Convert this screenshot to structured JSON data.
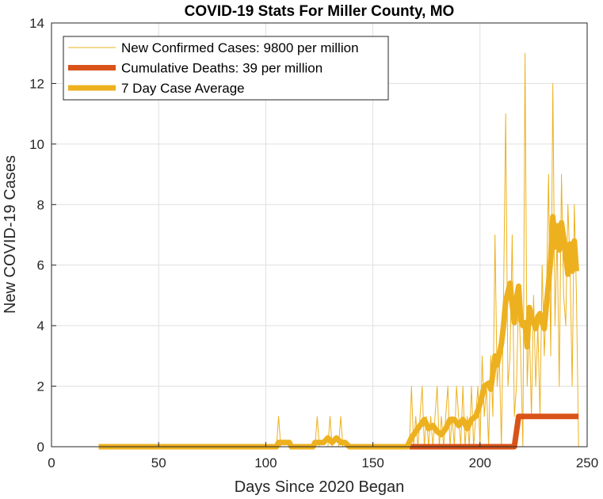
{
  "chart_data": {
    "type": "line",
    "title": "COVID-19 Stats For Miller County, MO",
    "xlabel": "Days Since 2020 Began",
    "ylabel": "New COVID-19 Cases",
    "xlim": [
      0,
      250
    ],
    "ylim": [
      0,
      14
    ],
    "xticks": [
      0,
      50,
      100,
      150,
      200,
      250
    ],
    "yticks": [
      0,
      2,
      4,
      6,
      8,
      10,
      12,
      14
    ],
    "grid": true,
    "legend_position": "top-left",
    "series": [
      {
        "name": "New Confirmed Cases: 9800 per million",
        "color": "#EDB120",
        "style": "thin",
        "points": [
          [
            22,
            0
          ],
          [
            105,
            0
          ],
          [
            106,
            1
          ],
          [
            107,
            0
          ],
          [
            123,
            0
          ],
          [
            124,
            1
          ],
          [
            125,
            0
          ],
          [
            129,
            0
          ],
          [
            130,
            1
          ],
          [
            131,
            0
          ],
          [
            134,
            0
          ],
          [
            135,
            1
          ],
          [
            136,
            0
          ],
          [
            166,
            0
          ],
          [
            167,
            0
          ],
          [
            168,
            2
          ],
          [
            169,
            0
          ],
          [
            170,
            1
          ],
          [
            171,
            0
          ],
          [
            172,
            1
          ],
          [
            173,
            2
          ],
          [
            174,
            0
          ],
          [
            175,
            1
          ],
          [
            176,
            0
          ],
          [
            177,
            1
          ],
          [
            178,
            0
          ],
          [
            179,
            1
          ],
          [
            180,
            2
          ],
          [
            181,
            0
          ],
          [
            182,
            1
          ],
          [
            183,
            0
          ],
          [
            184,
            1
          ],
          [
            185,
            2
          ],
          [
            186,
            0
          ],
          [
            187,
            1
          ],
          [
            188,
            0
          ],
          [
            189,
            2
          ],
          [
            190,
            1
          ],
          [
            191,
            0
          ],
          [
            192,
            2
          ],
          [
            193,
            0
          ],
          [
            194,
            1
          ],
          [
            195,
            0
          ],
          [
            196,
            2
          ],
          [
            197,
            0
          ],
          [
            198,
            1
          ],
          [
            199,
            2
          ],
          [
            200,
            0
          ],
          [
            201,
            3
          ],
          [
            202,
            1
          ],
          [
            203,
            2
          ],
          [
            204,
            0
          ],
          [
            205,
            3
          ],
          [
            206,
            1
          ],
          [
            207,
            7
          ],
          [
            208,
            2
          ],
          [
            209,
            3
          ],
          [
            210,
            0
          ],
          [
            211,
            5
          ],
          [
            212,
            11
          ],
          [
            213,
            2
          ],
          [
            214,
            3
          ],
          [
            215,
            7
          ],
          [
            216,
            1
          ],
          [
            217,
            2
          ],
          [
            218,
            5
          ],
          [
            219,
            3
          ],
          [
            220,
            0
          ],
          [
            221,
            13
          ],
          [
            222,
            2
          ],
          [
            223,
            4
          ],
          [
            224,
            1
          ],
          [
            225,
            5
          ],
          [
            226,
            2
          ],
          [
            227,
            4
          ],
          [
            228,
            1
          ],
          [
            229,
            6
          ],
          [
            230,
            3
          ],
          [
            231,
            5
          ],
          [
            232,
            9
          ],
          [
            233,
            3
          ],
          [
            234,
            12
          ],
          [
            235,
            4
          ],
          [
            236,
            7
          ],
          [
            237,
            2
          ],
          [
            238,
            9
          ],
          [
            239,
            5
          ],
          [
            240,
            4
          ],
          [
            241,
            8
          ],
          [
            242,
            6
          ],
          [
            243,
            2
          ],
          [
            244,
            8
          ],
          [
            245,
            5
          ],
          [
            246,
            0
          ]
        ]
      },
      {
        "name": "Cumulative Deaths: 39 per million",
        "color": "#D95319",
        "style": "thick",
        "points": [
          [
            167,
            0
          ],
          [
            216,
            0
          ],
          [
            218,
            1
          ],
          [
            246,
            1
          ]
        ]
      },
      {
        "name": "7 Day Case Average",
        "color": "#EDB120",
        "style": "thick",
        "points": [
          [
            22,
            0
          ],
          [
            105,
            0
          ],
          [
            106,
            0.14
          ],
          [
            111,
            0.14
          ],
          [
            112,
            0
          ],
          [
            122,
            0
          ],
          [
            123,
            0.14
          ],
          [
            127,
            0.14
          ],
          [
            129,
            0.29
          ],
          [
            131,
            0.14
          ],
          [
            133,
            0.29
          ],
          [
            135,
            0.14
          ],
          [
            137,
            0.14
          ],
          [
            139,
            0
          ],
          [
            166,
            0
          ],
          [
            168,
            0.3
          ],
          [
            170,
            0.5
          ],
          [
            172,
            0.7
          ],
          [
            174,
            0.9
          ],
          [
            176,
            0.6
          ],
          [
            178,
            0.7
          ],
          [
            180,
            0.5
          ],
          [
            182,
            0.4
          ],
          [
            184,
            0.6
          ],
          [
            186,
            0.9
          ],
          [
            188,
            0.9
          ],
          [
            190,
            0.7
          ],
          [
            192,
            0.9
          ],
          [
            194,
            0.6
          ],
          [
            196,
            0.9
          ],
          [
            198,
            1.0
          ],
          [
            200,
            1.4
          ],
          [
            202,
            2.0
          ],
          [
            204,
            2.1
          ],
          [
            205,
            1.9
          ],
          [
            206,
            2.4
          ],
          [
            207,
            3.0
          ],
          [
            208,
            2.7
          ],
          [
            210,
            3.4
          ],
          [
            211,
            4.0
          ],
          [
            212,
            4.8
          ],
          [
            214,
            5.4
          ],
          [
            215,
            4.7
          ],
          [
            216,
            4.1
          ],
          [
            217,
            4.9
          ],
          [
            218,
            5.3
          ],
          [
            219,
            4.2
          ],
          [
            220,
            4.0
          ],
          [
            221,
            4.1
          ],
          [
            222,
            3.3
          ],
          [
            223,
            4.6
          ],
          [
            224,
            4.3
          ],
          [
            226,
            3.9
          ],
          [
            227,
            4.3
          ],
          [
            228,
            4.4
          ],
          [
            229,
            4.1
          ],
          [
            230,
            3.9
          ],
          [
            231,
            4.7
          ],
          [
            232,
            5.4
          ],
          [
            233,
            6.2
          ],
          [
            234,
            7.6
          ],
          [
            235,
            6.6
          ],
          [
            236,
            7.3
          ],
          [
            237,
            6.5
          ],
          [
            238,
            7.4
          ],
          [
            239,
            6.9
          ],
          [
            240,
            6.3
          ],
          [
            241,
            5.7
          ],
          [
            242,
            6.7
          ],
          [
            243,
            5.8
          ],
          [
            244,
            6.8
          ],
          [
            245,
            5.8
          ]
        ]
      }
    ]
  }
}
